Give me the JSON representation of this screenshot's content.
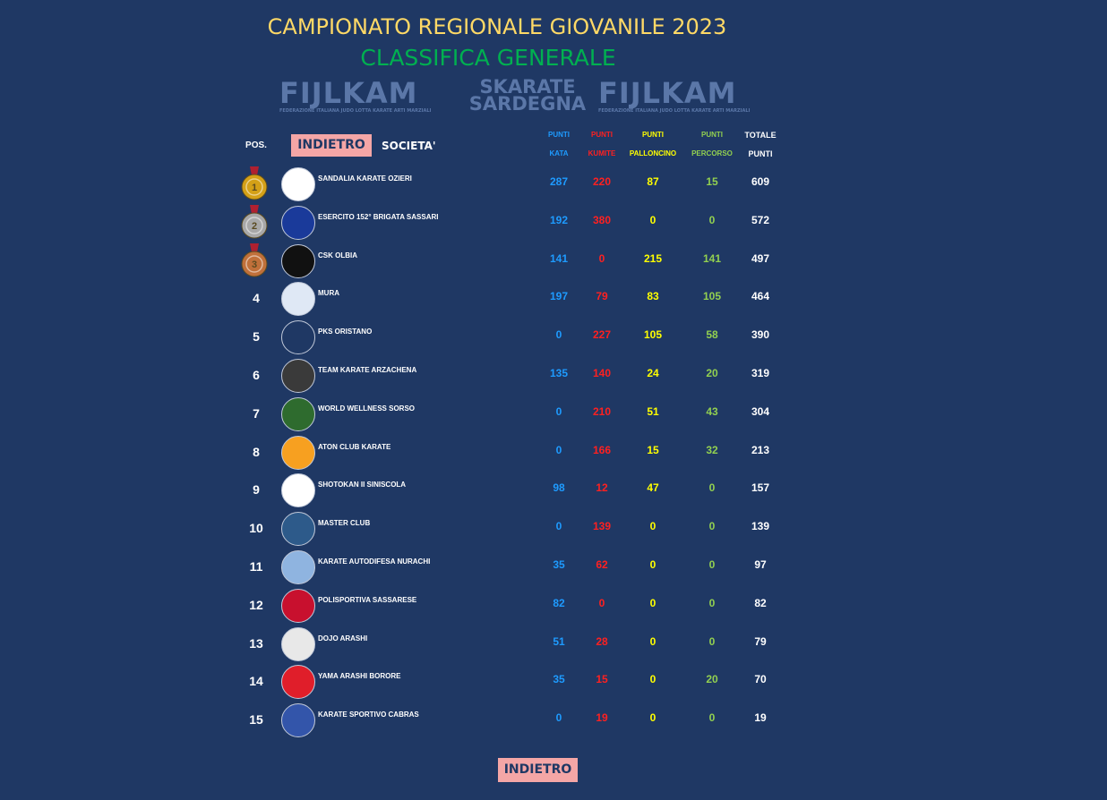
{
  "title": "CAMPIONATO REGIONALE GIOVANILE 2023",
  "subtitle": "CLASSIFICA GENERALE",
  "logos": {
    "fijlkam_big": "FIJLKAM",
    "fijlkam_small": "FEDERAZIONE ITALIANA JUDO LOTTA KARATE ARTI MARZIALI",
    "sardegna_1": "SKARATE",
    "sardegna_2": "SARDEGNA"
  },
  "header": {
    "pos": "POS.",
    "back_label": "INDIETRO",
    "societa": "SOCIETA'",
    "kata_1": "PUNTI",
    "kata_2": "KATA",
    "kumite_1": "PUNTI",
    "kumite_2": "KUMITE",
    "pallon_1": "PUNTI",
    "pallon_2": "PALLONCINO",
    "perc_1": "PUNTI",
    "perc_2": "PERCORSO",
    "tot_1": "TOTALE",
    "tot_2": "PUNTI"
  },
  "colors": {
    "background": "#1f3864",
    "kata": "#1e9bff",
    "kumite": "#ff2020",
    "palloncino": "#ffff00",
    "percorso": "#92d050",
    "gold": "#d4a017",
    "silver": "#a8a8a8",
    "bronze": "#c0703a"
  },
  "rows": [
    {
      "pos": "1",
      "medal": "gold-medal-icon",
      "name": "SANDALIA KARATE OZIERI",
      "kata": "287",
      "kumite": "220",
      "pallon": "87",
      "perc": "15",
      "tot": "609",
      "logo_color": "#ffffff"
    },
    {
      "pos": "2",
      "medal": "silver-medal-icon",
      "name": "ESERCITO 152° BRIGATA SASSARI",
      "kata": "192",
      "kumite": "380",
      "pallon": "0",
      "perc": "0",
      "tot": "572",
      "logo_color": "#1a3a9a"
    },
    {
      "pos": "3",
      "medal": "bronze-medal-icon",
      "name": "CSK OLBIA",
      "kata": "141",
      "kumite": "0",
      "pallon": "215",
      "perc": "141",
      "tot": "497",
      "logo_color": "#111111"
    },
    {
      "pos": "4",
      "name": "MURA",
      "kata": "197",
      "kumite": "79",
      "pallon": "83",
      "perc": "105",
      "tot": "464",
      "logo_color": "#dfe8f5"
    },
    {
      "pos": "5",
      "name": "PKS ORISTANO",
      "kata": "0",
      "kumite": "227",
      "pallon": "105",
      "perc": "58",
      "tot": "390",
      "logo_color": "#1f3864"
    },
    {
      "pos": "6",
      "name": "TEAM KARATE ARZACHENA",
      "kata": "135",
      "kumite": "140",
      "pallon": "24",
      "perc": "20",
      "tot": "319",
      "logo_color": "#3a3a3a"
    },
    {
      "pos": "7",
      "name": "WORLD WELLNESS SORSO",
      "kata": "0",
      "kumite": "210",
      "pallon": "51",
      "perc": "43",
      "tot": "304",
      "logo_color": "#2e6b2e"
    },
    {
      "pos": "8",
      "name": "ATON CLUB KARATE",
      "kata": "0",
      "kumite": "166",
      "pallon": "15",
      "perc": "32",
      "tot": "213",
      "logo_color": "#f7a020"
    },
    {
      "pos": "9",
      "name": "SHOTOKAN II SINISCOLA",
      "kata": "98",
      "kumite": "12",
      "pallon": "47",
      "perc": "0",
      "tot": "157",
      "logo_color": "#ffffff"
    },
    {
      "pos": "10",
      "name": "MASTER CLUB",
      "kata": "0",
      "kumite": "139",
      "pallon": "0",
      "perc": "0",
      "tot": "139",
      "logo_color": "#2d5a8a"
    },
    {
      "pos": "11",
      "name": "KARATE AUTODIFESA NURACHI",
      "kata": "35",
      "kumite": "62",
      "pallon": "0",
      "perc": "0",
      "tot": "97",
      "logo_color": "#8fb4e0"
    },
    {
      "pos": "12",
      "name": "POLISPORTIVA SASSARESE",
      "kata": "82",
      "kumite": "0",
      "pallon": "0",
      "perc": "0",
      "tot": "82",
      "logo_color": "#c8102e"
    },
    {
      "pos": "13",
      "name": "DOJO ARASHI",
      "kata": "51",
      "kumite": "28",
      "pallon": "0",
      "perc": "0",
      "tot": "79",
      "logo_color": "#e8e8e8"
    },
    {
      "pos": "14",
      "name": "YAMA ARASHI BORORE",
      "kata": "35",
      "kumite": "15",
      "pallon": "0",
      "perc": "20",
      "tot": "70",
      "logo_color": "#e01e2a"
    },
    {
      "pos": "15",
      "name": "KARATE SPORTIVO CABRAS",
      "kata": "0",
      "kumite": "19",
      "pallon": "0",
      "perc": "0",
      "tot": "19",
      "logo_color": "#3355aa"
    }
  ],
  "footer": {
    "back_label": "INDIETRO"
  }
}
